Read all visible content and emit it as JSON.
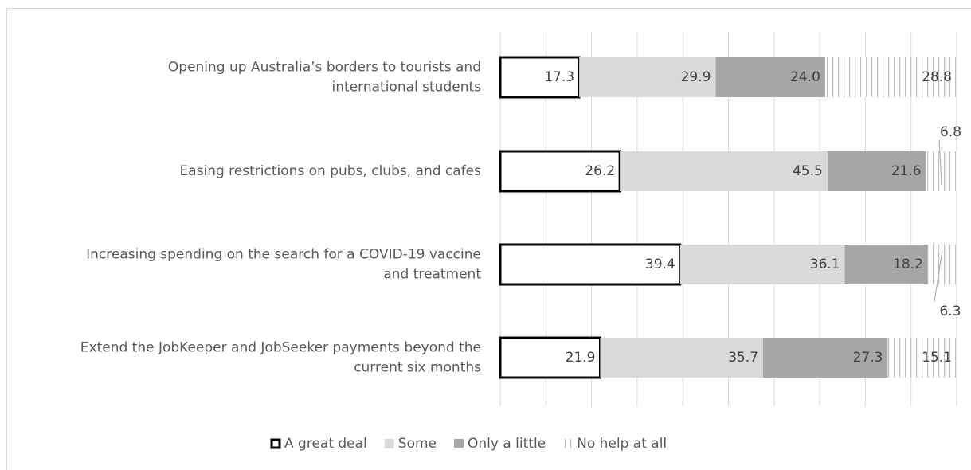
{
  "chart_data": {
    "type": "bar",
    "orientation": "horizontal",
    "stacked": true,
    "categories": [
      [
        "Opening up Australia’s borders to tourists and",
        "international students"
      ],
      [
        "Easing restrictions on pubs, clubs, and cafes"
      ],
      [
        "Increasing spending on the search for a COVID-19 vaccine",
        "and treatment"
      ],
      [
        "Extend the JobKeeper and JobSeeker payments beyond the",
        "current six months"
      ]
    ],
    "series": [
      {
        "name": "A great deal",
        "values": [
          17.3,
          26.2,
          39.4,
          21.9
        ],
        "labels": [
          "17.3",
          "26.2",
          "39.4",
          "21.9"
        ],
        "fill": "#ffffff",
        "stroke": "#000000"
      },
      {
        "name": "Some",
        "values": [
          29.9,
          45.5,
          36.1,
          35.7
        ],
        "labels": [
          "29.9",
          "45.5",
          "36.1",
          "35.7"
        ],
        "fill": "#d9d9d9"
      },
      {
        "name": "Only a little",
        "values": [
          24.0,
          21.6,
          18.2,
          27.3
        ],
        "labels": [
          "24.0",
          "21.6",
          "18.2",
          "27.3"
        ],
        "fill": "#a6a6a6"
      },
      {
        "name": "No help at all",
        "values": [
          28.8,
          6.8,
          6.3,
          15.1
        ],
        "labels": [
          "28.8",
          "6.8",
          "6.3",
          "15.1"
        ],
        "fill": "pattern-vertical-lines"
      }
    ],
    "xlim": [
      0,
      100
    ],
    "grid": true,
    "legend_position": "bottom",
    "colors": {
      "text": "#595959",
      "grid": "#d9d9d9",
      "value_text": "#404040"
    }
  }
}
